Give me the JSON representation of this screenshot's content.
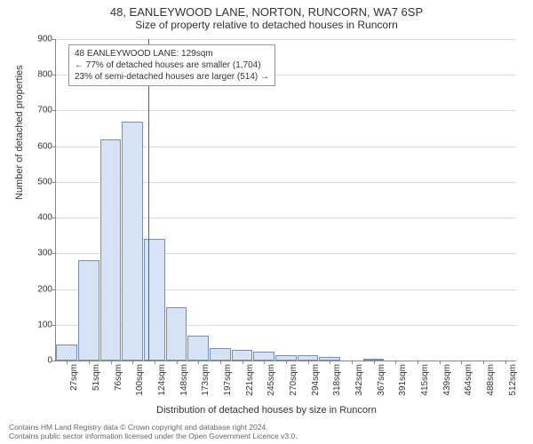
{
  "title": "48, EANLEYWOOD LANE, NORTON, RUNCORN, WA7 6SP",
  "subtitle": "Size of property relative to detached houses in Runcorn",
  "chart": {
    "type": "histogram",
    "ylabel": "Number of detached properties",
    "xlabel": "Distribution of detached houses by size in Runcorn",
    "ylim": [
      0,
      900
    ],
    "ytick_step": 100,
    "yticks": [
      0,
      100,
      200,
      300,
      400,
      500,
      600,
      700,
      800,
      900
    ],
    "xticks": [
      "27sqm",
      "51sqm",
      "76sqm",
      "100sqm",
      "124sqm",
      "148sqm",
      "173sqm",
      "197sqm",
      "221sqm",
      "245sqm",
      "270sqm",
      "294sqm",
      "318sqm",
      "342sqm",
      "367sqm",
      "391sqm",
      "415sqm",
      "439sqm",
      "464sqm",
      "488sqm",
      "512sqm"
    ],
    "bar_values": [
      45,
      280,
      620,
      670,
      340,
      150,
      70,
      35,
      30,
      25,
      15,
      15,
      10,
      0,
      5,
      0,
      0,
      0,
      0,
      0,
      0
    ],
    "bar_color": "#d6e2f5",
    "bar_border_color": "#7a8fb8",
    "background_color": "#ffffff",
    "grid_color": "#dddddd",
    "reference_line": {
      "position_index": 4.2,
      "color": "#d03030"
    },
    "annotation": {
      "lines": [
        "48 EANLEYWOOD LANE: 129sqm",
        "← 77% of detached houses are smaller (1,704)",
        "23% of semi-detached houses are larger (514) →"
      ]
    }
  },
  "footer": {
    "line1": "Contains HM Land Registry data © Crown copyright and database right 2024.",
    "line2": "Contains public sector information licensed under the Open Government Licence v3.0."
  }
}
